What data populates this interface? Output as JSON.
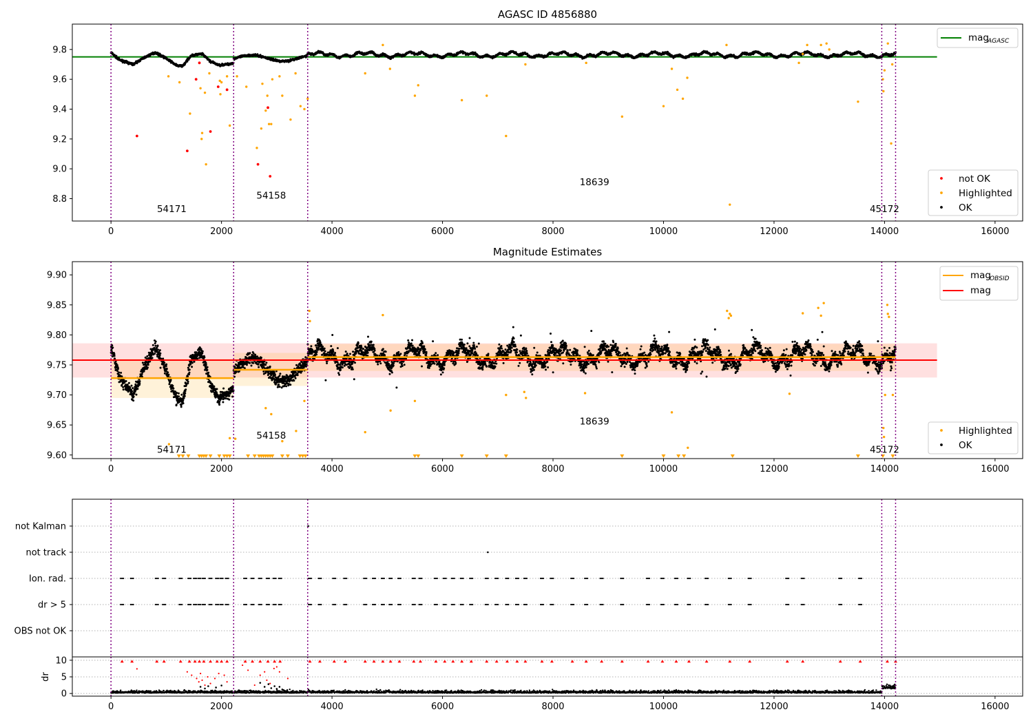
{
  "chart_data": [
    {
      "id": "panel1",
      "type": "scatter",
      "title": "AGASC ID 4856880",
      "xlim": [
        -700,
        16500
      ],
      "ylim": [
        8.65,
        9.97
      ],
      "xticks": [
        0,
        2000,
        4000,
        6000,
        8000,
        10000,
        12000,
        14000,
        16000
      ],
      "xticklabels": [
        "0",
        "2000",
        "4000",
        "6000",
        "8000",
        "10000",
        "12000",
        "14000",
        "16000"
      ],
      "yticks": [
        8.8,
        9.0,
        9.2,
        9.4,
        9.6,
        9.8
      ],
      "yticklabels": [
        "8.8",
        "9.0",
        "9.2",
        "9.4",
        "9.6",
        "9.8"
      ],
      "obsid_boundaries": [
        0,
        2220,
        3560,
        13950,
        14200
      ],
      "obsid_labels": [
        {
          "text": "54171",
          "x": 1100,
          "y": 8.71
        },
        {
          "text": "54158",
          "x": 2900,
          "y": 8.8
        },
        {
          "text": "18639",
          "x": 8750,
          "y": 8.89
        },
        {
          "text": "45172",
          "x": 14000,
          "y": 8.71
        }
      ],
      "mag_agasc": 9.75,
      "line_legend": [
        {
          "label": "mag",
          "sub": "AGASC",
          "color": "#008000"
        }
      ],
      "marker_legend": [
        {
          "label": "not OK",
          "color": "#ff0000"
        },
        {
          "label": "Highlighted",
          "color": "#ffa500"
        },
        {
          "label": "OK",
          "color": "#000000"
        }
      ],
      "not_ok_points": [
        [
          470,
          9.22
        ],
        [
          1380,
          9.12
        ],
        [
          1540,
          9.6
        ],
        [
          1600,
          9.71
        ],
        [
          1800,
          9.25
        ],
        [
          1940,
          9.55
        ],
        [
          2100,
          9.53
        ],
        [
          2660,
          9.03
        ],
        [
          2880,
          8.95
        ],
        [
          2840,
          9.41
        ]
      ],
      "highlighted_points": [
        [
          1040,
          9.62
        ],
        [
          1240,
          9.58
        ],
        [
          1430,
          9.37
        ],
        [
          1620,
          9.54
        ],
        [
          1640,
          9.2
        ],
        [
          1650,
          9.24
        ],
        [
          1700,
          9.51
        ],
        [
          1720,
          9.03
        ],
        [
          1780,
          9.64
        ],
        [
          1970,
          9.59
        ],
        [
          1980,
          9.5
        ],
        [
          2000,
          9.58
        ],
        [
          2100,
          9.62
        ],
        [
          2150,
          9.29
        ],
        [
          2280,
          9.62
        ],
        [
          2450,
          9.55
        ],
        [
          2640,
          9.14
        ],
        [
          2720,
          9.27
        ],
        [
          2740,
          9.57
        ],
        [
          2800,
          9.39
        ],
        [
          2830,
          9.49
        ],
        [
          2860,
          9.3
        ],
        [
          2900,
          9.3
        ],
        [
          2920,
          9.6
        ],
        [
          3050,
          9.62
        ],
        [
          3100,
          9.49
        ],
        [
          3250,
          9.33
        ],
        [
          3340,
          9.64
        ],
        [
          3430,
          9.42
        ],
        [
          3500,
          9.4
        ],
        [
          3560,
          9.47
        ],
        [
          4600,
          9.64
        ],
        [
          4920,
          9.83
        ],
        [
          5050,
          9.67
        ],
        [
          5500,
          9.49
        ],
        [
          5560,
          9.56
        ],
        [
          6350,
          9.46
        ],
        [
          6800,
          9.49
        ],
        [
          7150,
          9.22
        ],
        [
          7500,
          9.7
        ],
        [
          8600,
          9.71
        ],
        [
          9250,
          9.35
        ],
        [
          10000,
          9.42
        ],
        [
          10150,
          9.67
        ],
        [
          10250,
          9.53
        ],
        [
          10350,
          9.47
        ],
        [
          10430,
          9.61
        ],
        [
          11200,
          8.76
        ],
        [
          11140,
          9.83
        ],
        [
          12450,
          9.71
        ],
        [
          12520,
          9.77
        ],
        [
          12600,
          9.83
        ],
        [
          12850,
          9.83
        ],
        [
          12950,
          9.84
        ],
        [
          13000,
          9.8
        ],
        [
          13520,
          9.45
        ],
        [
          13970,
          9.6
        ],
        [
          13980,
          9.52
        ],
        [
          14000,
          9.66
        ],
        [
          14060,
          9.84
        ],
        [
          14120,
          9.17
        ],
        [
          14140,
          9.7
        ]
      ]
    },
    {
      "id": "panel2",
      "type": "scatter",
      "title": "Magnitude Estimates",
      "xlim": [
        -700,
        16500
      ],
      "ylim": [
        9.594,
        9.922
      ],
      "xticks": [
        0,
        2000,
        4000,
        6000,
        8000,
        10000,
        12000,
        14000,
        16000
      ],
      "xticklabels": [
        "0",
        "2000",
        "4000",
        "6000",
        "8000",
        "10000",
        "12000",
        "14000",
        "16000"
      ],
      "yticks": [
        9.6,
        9.65,
        9.7,
        9.75,
        9.8,
        9.85,
        9.9
      ],
      "yticklabels": [
        "9.60",
        "9.65",
        "9.70",
        "9.75",
        "9.80",
        "9.85",
        "9.90"
      ],
      "obsid_boundaries": [
        0,
        2220,
        3560,
        13950,
        14200
      ],
      "obsid_labels": [
        {
          "text": "54171",
          "x": 1100,
          "y": 9.604
        },
        {
          "text": "54158",
          "x": 2900,
          "y": 9.627
        },
        {
          "text": "18639",
          "x": 8750,
          "y": 9.651
        },
        {
          "text": "45172",
          "x": 14000,
          "y": 9.604
        }
      ],
      "mag": 9.758,
      "mag_band": [
        9.729,
        9.786
      ],
      "mag_obsid": [
        {
          "x0": 0,
          "x1": 2220,
          "value": 9.728,
          "band": [
            9.695,
            9.76
          ]
        },
        {
          "x0": 2220,
          "x1": 3560,
          "value": 9.742,
          "band": [
            9.715,
            9.77
          ]
        },
        {
          "x0": 3560,
          "x1": 14200,
          "value": 9.763,
          "band": [
            9.74,
            9.785
          ]
        }
      ],
      "line_legend": [
        {
          "label": "mag",
          "sub": "OBSID",
          "color": "#ffa500"
        },
        {
          "label": "mag",
          "sub": "",
          "color": "#ff0000"
        }
      ],
      "marker_legend": [
        {
          "label": "Highlighted",
          "color": "#ffa500"
        },
        {
          "label": "OK",
          "color": "#000000"
        }
      ],
      "below_limit_x": [
        1230,
        1300,
        1400,
        1600,
        1640,
        1680,
        1720,
        1800,
        1960,
        2050,
        2100,
        2150,
        2480,
        2600,
        2680,
        2720,
        2760,
        2800,
        2840,
        2880,
        2920,
        3100,
        3200,
        3420,
        3470,
        3520,
        5500,
        5560,
        6350,
        6800,
        7150,
        9250,
        10000,
        10270,
        10370,
        11250,
        13520,
        13970,
        14150
      ],
      "highlighted_points": [
        [
          1050,
          9.618
        ],
        [
          2150,
          9.628
        ],
        [
          2250,
          9.627
        ],
        [
          2800,
          9.678
        ],
        [
          2900,
          9.668
        ],
        [
          3100,
          9.623
        ],
        [
          3350,
          9.64
        ],
        [
          3500,
          9.69
        ],
        [
          3590,
          9.84
        ],
        [
          3600,
          9.823
        ],
        [
          4600,
          9.638
        ],
        [
          4920,
          9.833
        ],
        [
          5060,
          9.674
        ],
        [
          5500,
          9.69
        ],
        [
          7150,
          9.7
        ],
        [
          7480,
          9.705
        ],
        [
          7510,
          9.695
        ],
        [
          8580,
          9.703
        ],
        [
          10150,
          9.671
        ],
        [
          10440,
          9.612
        ],
        [
          11150,
          9.84
        ],
        [
          11200,
          9.835
        ],
        [
          11220,
          9.832
        ],
        [
          11180,
          9.828
        ],
        [
          12280,
          9.702
        ],
        [
          12520,
          9.836
        ],
        [
          12800,
          9.845
        ],
        [
          12850,
          9.832
        ],
        [
          12900,
          9.853
        ],
        [
          13980,
          9.645
        ],
        [
          13990,
          9.63
        ],
        [
          14010,
          9.7
        ],
        [
          14050,
          9.85
        ],
        [
          14060,
          9.835
        ],
        [
          14080,
          9.83
        ],
        [
          14150,
          9.7
        ]
      ]
    },
    {
      "id": "panel3",
      "type": "scatter",
      "xlim": [
        -700,
        16500
      ],
      "yticklabels": [
        "not Kalman",
        "not track",
        "Ion. rad.",
        "dr > 5",
        "OBS not OK"
      ],
      "obsid_boundaries": [
        0,
        2220,
        3560,
        13950,
        14200
      ],
      "flag_clusters": [
        200,
        380,
        830,
        960,
        1260,
        1420,
        1520,
        1600,
        1680,
        1800,
        1920,
        2000,
        2100,
        2430,
        2560,
        2700,
        2840,
        2960,
        3060,
        3600,
        3780,
        4040,
        4240,
        4600,
        4760,
        4920,
        5060,
        5220,
        5480,
        5600,
        5880,
        6040,
        6190,
        6350,
        6520,
        6800,
        6980,
        7170,
        7350,
        7500,
        7800,
        7980,
        8350,
        8600,
        8880,
        9250,
        9720,
        9980,
        10230,
        10460,
        10780,
        11200,
        11560,
        12240,
        12520,
        13200,
        13560
      ],
      "not_track_points": [
        6820
      ],
      "not_kalman_points": [
        3570
      ]
    },
    {
      "id": "panel4",
      "type": "scatter",
      "ylabel": "dr",
      "xlim": [
        -700,
        16500
      ],
      "ylim": [
        -0.8,
        11
      ],
      "xticks": [
        0,
        2000,
        4000,
        6000,
        8000,
        10000,
        12000,
        14000,
        16000
      ],
      "xticklabels": [
        "0",
        "2000",
        "4000",
        "6000",
        "8000",
        "10000",
        "12000",
        "14000",
        "16000"
      ],
      "yticks": [
        0,
        5,
        10
      ],
      "yticklabels": [
        "0",
        "5",
        "10"
      ],
      "obsid_boundaries": [
        0,
        2220,
        3560,
        13950,
        14200
      ],
      "capped_x": [
        200,
        380,
        830,
        960,
        1260,
        1420,
        1520,
        1600,
        1680,
        1800,
        1920,
        2000,
        2100,
        2430,
        2560,
        2700,
        2840,
        2960,
        3060,
        3600,
        3780,
        4040,
        4240,
        4600,
        4760,
        4920,
        5060,
        5220,
        5480,
        5600,
        5880,
        6040,
        6190,
        6350,
        6520,
        6800,
        6980,
        7170,
        7350,
        7500,
        7800,
        7980,
        8350,
        8600,
        8880,
        9250,
        9720,
        9980,
        10230,
        10460,
        10780,
        11200,
        11560,
        12240,
        12520,
        13200,
        13560,
        14050,
        14200
      ],
      "red_points": [
        [
          470,
          7.4
        ],
        [
          1380,
          6.5
        ],
        [
          1460,
          5.5
        ],
        [
          1550,
          4.5
        ],
        [
          1590,
          3.5
        ],
        [
          1620,
          6.0
        ],
        [
          1650,
          4.0
        ],
        [
          1700,
          2.5
        ],
        [
          1750,
          5.0
        ],
        [
          1800,
          3.0
        ],
        [
          1880,
          4.5
        ],
        [
          1950,
          6.0
        ],
        [
          2050,
          5.5
        ],
        [
          2100,
          3.5
        ],
        [
          2380,
          8.5
        ],
        [
          2480,
          7.0
        ],
        [
          2600,
          2.5
        ],
        [
          2700,
          5.5
        ],
        [
          2780,
          6.5
        ],
        [
          2820,
          4.0
        ],
        [
          2880,
          3.0
        ],
        [
          2950,
          7.5
        ],
        [
          3000,
          8.0
        ],
        [
          3050,
          6.5
        ],
        [
          3200,
          4.5
        ]
      ],
      "dense_points": [
        [
          1620,
          2.0
        ],
        [
          1700,
          1.5
        ],
        [
          1760,
          2.2
        ],
        [
          1900,
          1.8
        ],
        [
          2000,
          2.4
        ],
        [
          2700,
          3.2
        ],
        [
          2780,
          2.0
        ],
        [
          2850,
          2.8
        ],
        [
          2900,
          1.6
        ],
        [
          2960,
          2.2
        ],
        [
          3000,
          1.4
        ],
        [
          3050,
          2.0
        ],
        [
          3100,
          1.2
        ]
      ]
    }
  ]
}
